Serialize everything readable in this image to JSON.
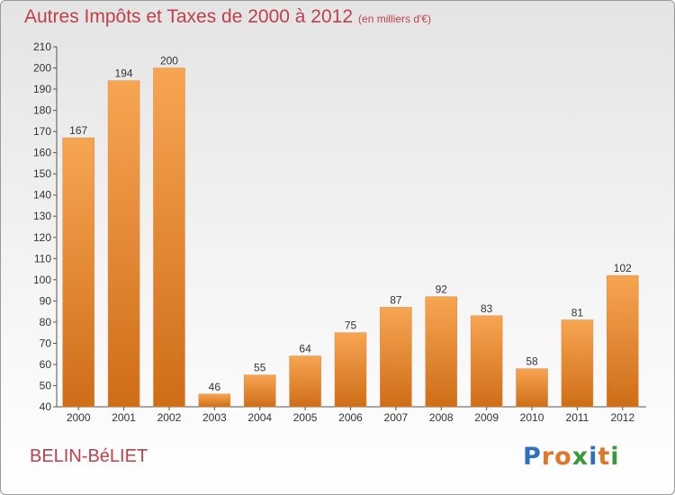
{
  "title": "Autres Impôts et Taxes de 2000 à 2012",
  "title_unit": "(en milliers d'€)",
  "commune": "BELIN-BéLIET",
  "logo": "Proxiti",
  "colors": {
    "title": "#c0404a",
    "bar_top": "#f7a552",
    "bar_bottom": "#cf6d18",
    "logo_letters": [
      "#2f6fc0",
      "#e0762a",
      "#e0762a",
      "#3a9a3a",
      "#2f6fc0",
      "#e0762a",
      "#3a9a3a"
    ]
  },
  "chart_data": {
    "type": "bar",
    "title": "Autres Impôts et Taxes de 2000 à 2012",
    "subtitle": "(en milliers d'€)",
    "categories": [
      "2000",
      "2001",
      "2002",
      "2003",
      "2004",
      "2005",
      "2006",
      "2007",
      "2008",
      "2009",
      "2010",
      "2011",
      "2012"
    ],
    "values": [
      167,
      194,
      200,
      46,
      55,
      64,
      75,
      87,
      92,
      83,
      58,
      81,
      102
    ],
    "ylim": [
      40,
      210
    ],
    "yticks": [
      40,
      50,
      60,
      70,
      80,
      90,
      100,
      110,
      120,
      130,
      140,
      150,
      160,
      170,
      180,
      190,
      200,
      210
    ],
    "xlabel": "",
    "ylabel": "",
    "grid": false,
    "data_labels": true
  }
}
